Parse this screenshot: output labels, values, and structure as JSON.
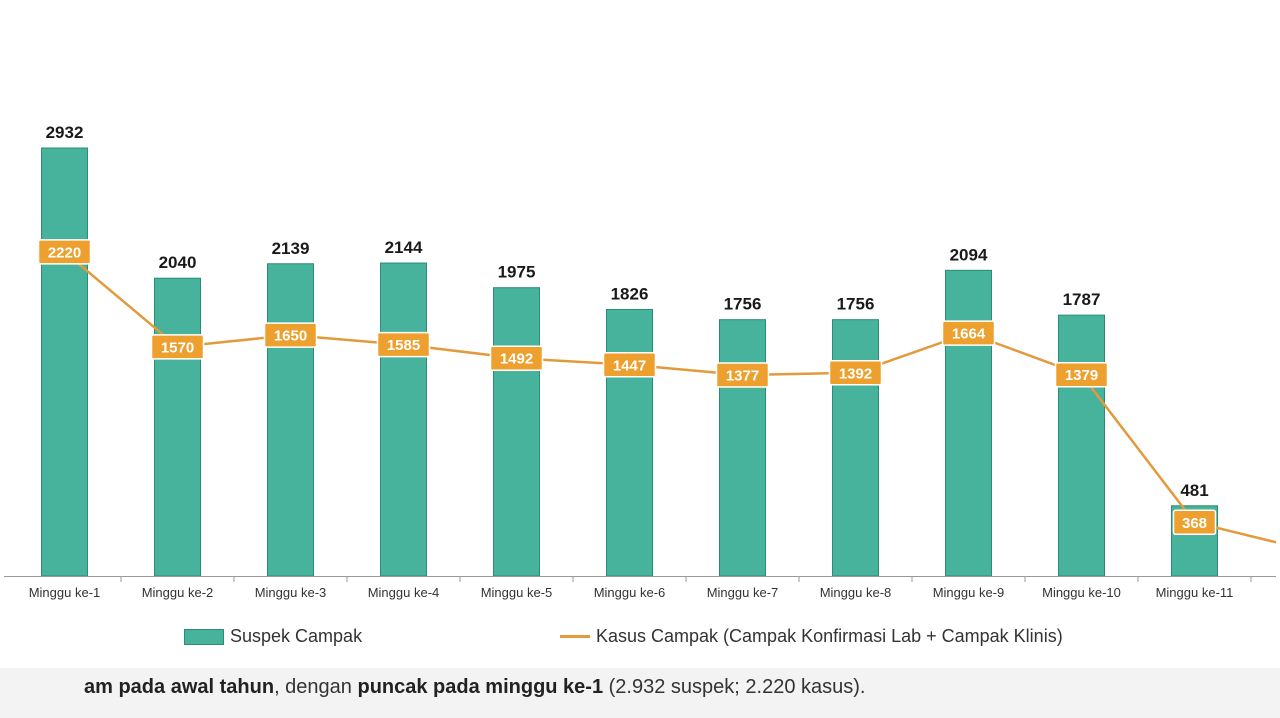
{
  "colors": {
    "bar": "#47b39c",
    "bar_edge": "#2c8c75",
    "line": "#e39a3c",
    "line_label_bg": "#eda02e",
    "axis": "#9a9a9a"
  },
  "legend": {
    "bar_label": "Suspek Campak",
    "line_label": "Kasus Campak (Campak Konfirmasi Lab + Campak Klinis)"
  },
  "caption": {
    "part1": "am pada awal tahun",
    "part2": ", dengan ",
    "part3": "puncak pada minggu ke-1",
    "part4": " (2.932 suspek; 2.220 kasus)."
  },
  "chart_data": {
    "type": "bar",
    "title": "",
    "xlabel": "",
    "ylabel": "",
    "ylim": [
      0,
      3000
    ],
    "categories": [
      "Minggu ke-1",
      "Minggu ke-2",
      "Minggu ke-3",
      "Minggu ke-4",
      "Minggu ke-5",
      "Minggu ke-6",
      "Minggu ke-7",
      "Minggu ke-8",
      "Minggu ke-9",
      "Minggu ke-10",
      "Minggu ke-11"
    ],
    "series": [
      {
        "name": "Suspek Campak",
        "type": "bar",
        "values": [
          2932,
          2040,
          2139,
          2144,
          1975,
          1826,
          1756,
          1756,
          2094,
          1787,
          481
        ]
      },
      {
        "name": "Kasus Campak (Campak Konfirmasi Lab + Campak Klinis)",
        "type": "line",
        "values": [
          2220,
          1570,
          1650,
          1585,
          1492,
          1447,
          1377,
          1392,
          1664,
          1379,
          368
        ]
      }
    ],
    "legend": "bottom"
  }
}
